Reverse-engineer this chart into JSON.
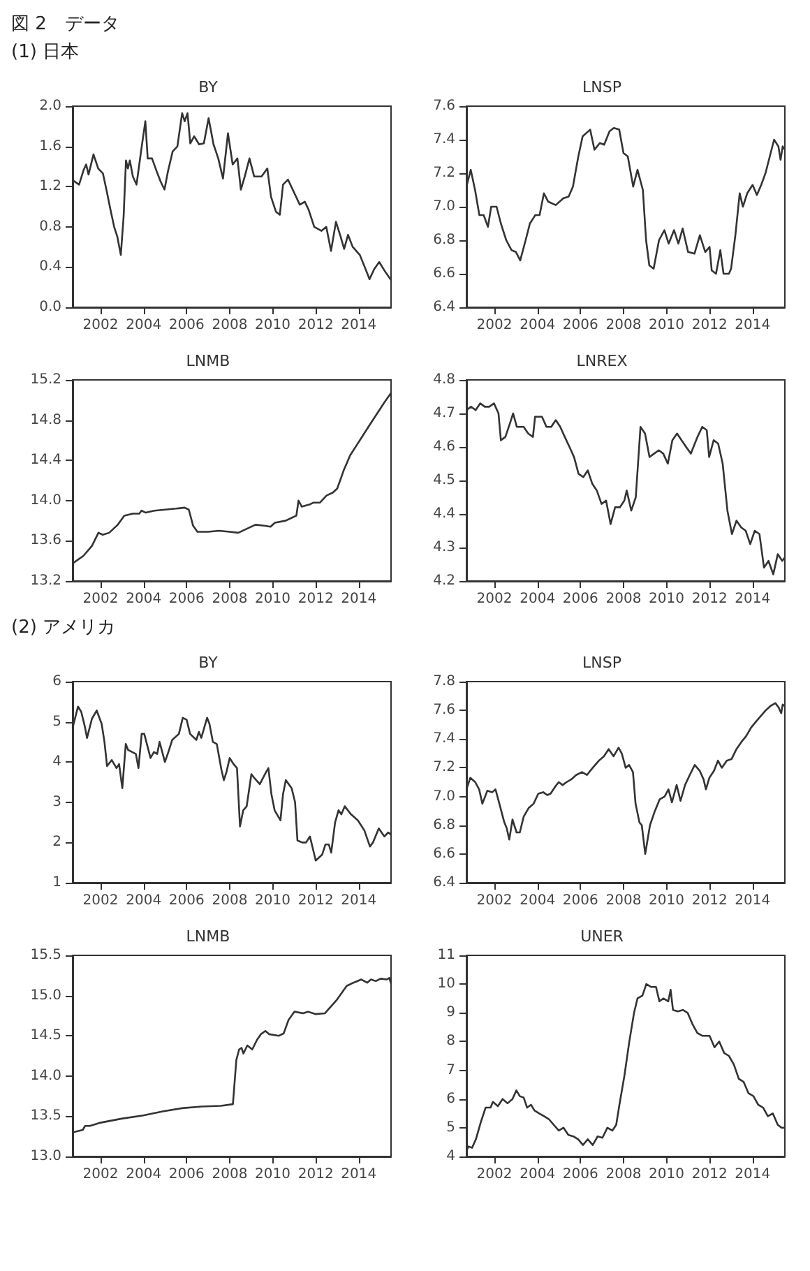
{
  "chart_data": [
    {
      "type": "line",
      "title": "BY",
      "annotations": [
        "図 2　データ",
        "(1) 日本"
      ],
      "xlim": [
        2000.7,
        2015.5
      ],
      "xticks": [
        2002,
        2004,
        2006,
        2008,
        2010,
        2012,
        2014
      ],
      "ylim": [
        0,
        2
      ],
      "yticks": [
        {
          "value": 0,
          "label": "0.0"
        },
        {
          "value": 0.4,
          "label": "0.4"
        },
        {
          "value": 0.8,
          "label": "0.8"
        },
        {
          "value": 1.2,
          "label": "1.2"
        },
        {
          "value": 1.6,
          "label": "1.6"
        },
        {
          "value": 2,
          "label": "2.0"
        }
      ],
      "x": [
        2000.73,
        2001.0,
        2001.22,
        2001.33,
        2001.44,
        2001.67,
        2001.89,
        2002.11,
        2002.29,
        2002.45,
        2002.63,
        2002.78,
        2002.94,
        2003.07,
        2003.18,
        2003.27,
        2003.36,
        2003.5,
        2003.67,
        2003.9,
        2004.08,
        2004.19,
        2004.39,
        2004.61,
        2004.79,
        2004.97,
        2005.13,
        2005.35,
        2005.57,
        2005.79,
        2005.91,
        2006.04,
        2006.17,
        2006.35,
        2006.58,
        2006.8,
        2007.02,
        2007.25,
        2007.47,
        2007.69,
        2007.92,
        2008.14,
        2008.36,
        2008.52,
        2008.7,
        2008.92,
        2009.14,
        2009.48,
        2009.75,
        2009.92,
        2010.15,
        2010.33,
        2010.48,
        2010.71,
        2011.04,
        2011.26,
        2011.49,
        2011.67,
        2011.93,
        2012.27,
        2012.49,
        2012.71,
        2012.94,
        2013.16,
        2013.32,
        2013.5,
        2013.72,
        2014.05,
        2014.28,
        2014.5,
        2014.72,
        2014.95,
        2015.24,
        2015.5
      ],
      "series": [
        {
          "color": "#333333",
          "values": [
            1.26,
            1.22,
            1.37,
            1.42,
            1.32,
            1.52,
            1.38,
            1.33,
            1.15,
            0.98,
            0.8,
            0.7,
            0.52,
            0.9,
            1.46,
            1.38,
            1.46,
            1.3,
            1.22,
            1.58,
            1.85,
            1.48,
            1.48,
            1.35,
            1.25,
            1.17,
            1.35,
            1.55,
            1.6,
            1.93,
            1.85,
            1.93,
            1.63,
            1.7,
            1.62,
            1.63,
            1.88,
            1.62,
            1.48,
            1.28,
            1.73,
            1.42,
            1.48,
            1.17,
            1.3,
            1.48,
            1.3,
            1.3,
            1.38,
            1.1,
            0.95,
            0.92,
            1.22,
            1.27,
            1.12,
            1.02,
            1.05,
            0.97,
            0.8,
            0.76,
            0.8,
            0.56,
            0.85,
            0.7,
            0.58,
            0.72,
            0.6,
            0.52,
            0.4,
            0.28,
            0.38,
            0.45,
            0.35,
            0.27
          ]
        }
      ]
    },
    {
      "type": "line",
      "title": "LNSP",
      "xlim": [
        2000.7,
        2015.5
      ],
      "xticks": [
        2002,
        2004,
        2006,
        2008,
        2010,
        2012,
        2014
      ],
      "ylim": [
        6.4,
        7.6
      ],
      "yticks": [
        6.4,
        6.6,
        6.8,
        {
          "value": 7,
          "label": "7.0"
        },
        7.2,
        7.4,
        7.6
      ],
      "x": [
        2000.7,
        2000.9,
        2001.1,
        2001.3,
        2001.5,
        2001.7,
        2001.85,
        2002.1,
        2002.3,
        2002.55,
        2002.8,
        2003.0,
        2003.2,
        2003.45,
        2003.65,
        2003.9,
        2004.1,
        2004.3,
        2004.5,
        2004.85,
        2005.2,
        2005.45,
        2005.65,
        2005.9,
        2006.1,
        2006.45,
        2006.65,
        2006.9,
        2007.1,
        2007.35,
        2007.55,
        2007.8,
        2008.0,
        2008.2,
        2008.45,
        2008.65,
        2008.9,
        2009.05,
        2009.2,
        2009.4,
        2009.65,
        2009.9,
        2010.1,
        2010.35,
        2010.55,
        2010.75,
        2011.0,
        2011.3,
        2011.55,
        2011.8,
        2012.0,
        2012.1,
        2012.3,
        2012.5,
        2012.65,
        2012.9,
        2013.0,
        2013.2,
        2013.4,
        2013.55,
        2013.75,
        2014.0,
        2014.2,
        2014.4,
        2014.6,
        2014.8,
        2015.0,
        2015.2,
        2015.3,
        2015.4,
        2015.5
      ],
      "series": [
        {
          "color": "#333333",
          "values": [
            7.12,
            7.22,
            7.1,
            6.95,
            6.95,
            6.88,
            7.0,
            7.0,
            6.9,
            6.8,
            6.74,
            6.73,
            6.68,
            6.8,
            6.9,
            6.95,
            6.95,
            7.08,
            7.03,
            7.01,
            7.05,
            7.06,
            7.12,
            7.3,
            7.42,
            7.46,
            7.34,
            7.38,
            7.37,
            7.45,
            7.47,
            7.46,
            7.32,
            7.3,
            7.12,
            7.22,
            7.1,
            6.8,
            6.65,
            6.63,
            6.8,
            6.86,
            6.78,
            6.86,
            6.78,
            6.87,
            6.73,
            6.72,
            6.83,
            6.73,
            6.76,
            6.62,
            6.6,
            6.74,
            6.6,
            6.6,
            6.63,
            6.83,
            7.08,
            7.0,
            7.08,
            7.13,
            7.07,
            7.13,
            7.2,
            7.3,
            7.4,
            7.36,
            7.28,
            7.36,
            7.34
          ]
        }
      ]
    },
    {
      "type": "line",
      "title": "LNMB",
      "xlim": [
        2000.7,
        2015.5
      ],
      "xticks": [
        2002,
        2004,
        2006,
        2008,
        2010,
        2012,
        2014
      ],
      "ylim": [
        13.2,
        15.2
      ],
      "yticks": [
        13.2,
        13.6,
        {
          "value": 14,
          "label": "14.0"
        },
        14.4,
        14.8,
        15.2
      ],
      "x": [
        2000.73,
        2001.2,
        2001.6,
        2001.9,
        2002.1,
        2002.4,
        2002.8,
        2003.1,
        2003.5,
        2003.8,
        2003.9,
        2004.1,
        2004.5,
        2005.0,
        2005.5,
        2005.9,
        2006.1,
        2006.3,
        2006.5,
        2007.0,
        2007.5,
        2008.0,
        2008.4,
        2008.8,
        2009.2,
        2009.6,
        2009.9,
        2010.1,
        2010.6,
        2010.9,
        2011.1,
        2011.2,
        2011.35,
        2011.7,
        2011.9,
        2012.2,
        2012.5,
        2012.8,
        2013.0,
        2013.3,
        2013.6,
        2013.9,
        2014.2,
        2014.5,
        2014.9,
        2015.2,
        2015.5
      ],
      "series": [
        {
          "color": "#333333",
          "values": [
            13.38,
            13.45,
            13.55,
            13.68,
            13.66,
            13.68,
            13.76,
            13.85,
            13.87,
            13.87,
            13.9,
            13.88,
            13.9,
            13.91,
            13.92,
            13.93,
            13.91,
            13.75,
            13.69,
            13.69,
            13.7,
            13.69,
            13.68,
            13.72,
            13.76,
            13.75,
            13.74,
            13.78,
            13.8,
            13.83,
            13.85,
            14.0,
            13.94,
            13.96,
            13.98,
            13.98,
            14.05,
            14.08,
            14.12,
            14.3,
            14.45,
            14.55,
            14.65,
            14.75,
            14.88,
            14.98,
            15.07
          ]
        }
      ]
    },
    {
      "type": "line",
      "title": "LNREX",
      "xlim": [
        2000.7,
        2015.5
      ],
      "xticks": [
        2002,
        2004,
        2006,
        2008,
        2010,
        2012,
        2014
      ],
      "ylim": [
        4.2,
        4.8
      ],
      "yticks": [
        4.2,
        4.3,
        4.4,
        4.5,
        4.6,
        4.7,
        4.8
      ],
      "x": [
        2000.7,
        2000.91,
        2001.13,
        2001.34,
        2001.55,
        2001.76,
        2001.98,
        2002.19,
        2002.3,
        2002.51,
        2002.72,
        2002.87,
        2003.04,
        2003.36,
        2003.57,
        2003.79,
        2003.89,
        2004.21,
        2004.42,
        2004.64,
        2004.85,
        2005.06,
        2005.27,
        2005.49,
        2005.7,
        2005.91,
        2006.13,
        2006.34,
        2006.55,
        2006.76,
        2006.98,
        2007.19,
        2007.4,
        2007.61,
        2007.83,
        2008.04,
        2008.15,
        2008.36,
        2008.57,
        2008.79,
        2009.0,
        2009.21,
        2009.42,
        2009.64,
        2009.85,
        2010.06,
        2010.27,
        2010.49,
        2010.7,
        2010.91,
        2011.13,
        2011.44,
        2011.66,
        2011.87,
        2011.98,
        2012.19,
        2012.4,
        2012.61,
        2012.83,
        2013.04,
        2013.25,
        2013.47,
        2013.68,
        2013.89,
        2014.1,
        2014.32,
        2014.53,
        2014.74,
        2014.96,
        2015.17,
        2015.38,
        2015.49
      ],
      "series": [
        {
          "color": "#333333",
          "values": [
            4.71,
            4.72,
            4.71,
            4.73,
            4.72,
            4.72,
            4.73,
            4.7,
            4.62,
            4.63,
            4.67,
            4.7,
            4.66,
            4.66,
            4.64,
            4.63,
            4.69,
            4.69,
            4.66,
            4.66,
            4.68,
            4.66,
            4.63,
            4.6,
            4.57,
            4.52,
            4.51,
            4.53,
            4.49,
            4.47,
            4.43,
            4.44,
            4.37,
            4.42,
            4.42,
            4.44,
            4.47,
            4.41,
            4.45,
            4.66,
            4.64,
            4.57,
            4.58,
            4.59,
            4.58,
            4.55,
            4.62,
            4.64,
            4.62,
            4.6,
            4.58,
            4.63,
            4.66,
            4.65,
            4.57,
            4.62,
            4.61,
            4.55,
            4.41,
            4.34,
            4.38,
            4.36,
            4.35,
            4.31,
            4.35,
            4.34,
            4.24,
            4.26,
            4.22,
            4.28,
            4.26,
            4.27
          ]
        }
      ]
    },
    {
      "type": "line",
      "title": "BY",
      "annotations": [
        "(2) アメリカ"
      ],
      "xlim": [
        2000.7,
        2015.5
      ],
      "xticks": [
        2002,
        2004,
        2006,
        2008,
        2010,
        2012,
        2014
      ],
      "ylim": [
        1,
        6
      ],
      "yticks": [
        1,
        2,
        3,
        4,
        5,
        6
      ],
      "x": [
        2000.7,
        2000.95,
        2001.1,
        2001.26,
        2001.37,
        2001.6,
        2001.82,
        2002.05,
        2002.18,
        2002.3,
        2002.52,
        2002.74,
        2002.86,
        2003.01,
        2003.17,
        2003.28,
        2003.64,
        2003.76,
        2003.91,
        2004.03,
        2004.32,
        2004.48,
        2004.63,
        2004.74,
        2004.99,
        2005.15,
        2005.33,
        2005.64,
        2005.82,
        2006.0,
        2006.16,
        2006.45,
        2006.57,
        2006.68,
        2006.95,
        2007.06,
        2007.22,
        2007.4,
        2007.62,
        2007.73,
        2007.85,
        2008.0,
        2008.18,
        2008.34,
        2008.48,
        2008.63,
        2008.79,
        2009.01,
        2009.15,
        2009.4,
        2009.69,
        2009.8,
        2009.94,
        2010.09,
        2010.36,
        2010.48,
        2010.61,
        2010.88,
        2011.04,
        2011.15,
        2011.37,
        2011.55,
        2011.73,
        2012.0,
        2012.3,
        2012.45,
        2012.61,
        2012.72,
        2012.9,
        2013.06,
        2013.19,
        2013.35,
        2013.64,
        2013.96,
        2014.26,
        2014.52,
        2014.66,
        2014.93,
        2015.19,
        2015.37,
        2015.49
      ],
      "series": [
        {
          "color": "#333333",
          "values": [
            4.85,
            5.38,
            5.25,
            4.9,
            4.6,
            5.08,
            5.28,
            4.95,
            4.5,
            3.9,
            4.05,
            3.85,
            3.95,
            3.35,
            4.45,
            4.3,
            4.2,
            3.85,
            4.7,
            4.7,
            4.1,
            4.25,
            4.2,
            4.5,
            4.0,
            4.25,
            4.55,
            4.7,
            5.1,
            5.05,
            4.7,
            4.55,
            4.75,
            4.6,
            5.1,
            4.95,
            4.5,
            4.45,
            3.8,
            3.55,
            3.75,
            4.1,
            3.95,
            3.85,
            2.4,
            2.8,
            2.9,
            3.7,
            3.6,
            3.45,
            3.75,
            3.85,
            3.2,
            2.8,
            2.55,
            3.2,
            3.55,
            3.35,
            3.0,
            2.05,
            2.0,
            2.0,
            2.15,
            1.55,
            1.7,
            1.95,
            1.95,
            1.75,
            2.5,
            2.8,
            2.7,
            2.9,
            2.7,
            2.55,
            2.3,
            1.9,
            2.0,
            2.35,
            2.15,
            2.25,
            2.2
          ]
        }
      ]
    },
    {
      "type": "line",
      "title": "LNSP",
      "xlim": [
        2000.7,
        2015.5
      ],
      "xticks": [
        2002,
        2004,
        2006,
        2008,
        2010,
        2012,
        2014
      ],
      "ylim": [
        6.4,
        7.8
      ],
      "yticks": [
        6.4,
        6.6,
        6.8,
        {
          "value": 7,
          "label": "7.0"
        },
        7.2,
        7.4,
        7.6,
        7.8
      ],
      "x": [
        2000.7,
        2000.88,
        2001.11,
        2001.29,
        2001.44,
        2001.67,
        2001.9,
        2002.05,
        2002.23,
        2002.46,
        2002.57,
        2002.69,
        2002.84,
        2003.03,
        2003.18,
        2003.36,
        2003.59,
        2003.82,
        2004.04,
        2004.27,
        2004.45,
        2004.61,
        2004.83,
        2004.99,
        2005.17,
        2005.35,
        2005.58,
        2005.8,
        2006.07,
        2006.3,
        2006.57,
        2006.86,
        2007.09,
        2007.31,
        2007.54,
        2007.77,
        2007.92,
        2008.1,
        2008.26,
        2008.44,
        2008.56,
        2008.74,
        2008.85,
        2009.01,
        2009.23,
        2009.46,
        2009.68,
        2009.91,
        2010.09,
        2010.25,
        2010.47,
        2010.65,
        2010.86,
        2011.08,
        2011.31,
        2011.54,
        2011.72,
        2011.83,
        2011.99,
        2012.21,
        2012.39,
        2012.57,
        2012.8,
        2013.02,
        2013.25,
        2013.48,
        2013.7,
        2013.93,
        2014.15,
        2014.38,
        2014.61,
        2014.83,
        2015.06,
        2015.21,
        2015.33,
        2015.4,
        2015.5
      ],
      "series": [
        {
          "color": "#333333",
          "values": [
            7.05,
            7.13,
            7.1,
            7.05,
            6.95,
            7.04,
            7.03,
            7.05,
            6.95,
            6.82,
            6.78,
            6.7,
            6.84,
            6.75,
            6.75,
            6.86,
            6.92,
            6.95,
            7.02,
            7.03,
            7.01,
            7.02,
            7.07,
            7.1,
            7.08,
            7.1,
            7.12,
            7.15,
            7.17,
            7.15,
            7.2,
            7.25,
            7.28,
            7.33,
            7.28,
            7.34,
            7.3,
            7.2,
            7.22,
            7.17,
            6.95,
            6.82,
            6.8,
            6.6,
            6.8,
            6.9,
            6.98,
            7.0,
            7.05,
            6.96,
            7.08,
            6.97,
            7.08,
            7.15,
            7.22,
            7.18,
            7.12,
            7.05,
            7.13,
            7.18,
            7.25,
            7.2,
            7.25,
            7.26,
            7.33,
            7.38,
            7.42,
            7.48,
            7.52,
            7.56,
            7.6,
            7.63,
            7.65,
            7.62,
            7.58,
            7.64,
            7.63
          ]
        }
      ]
    },
    {
      "type": "line",
      "title": "LNMB",
      "xlim": [
        2000.7,
        2015.5
      ],
      "xticks": [
        2002,
        2004,
        2006,
        2008,
        2010,
        2012,
        2014
      ],
      "ylim": [
        13,
        15.5
      ],
      "yticks": [
        {
          "value": 13,
          "label": "13.0"
        },
        13.5,
        {
          "value": 14,
          "label": "14.0"
        },
        14.5,
        {
          "value": 15,
          "label": "15.0"
        },
        15.5
      ],
      "x": [
        2000.7,
        2001.17,
        2001.28,
        2001.5,
        2002.0,
        2002.97,
        2003.98,
        2004.88,
        2005.78,
        2006.68,
        2007.59,
        2008.15,
        2008.31,
        2008.44,
        2008.55,
        2008.64,
        2008.82,
        2009.05,
        2009.27,
        2009.45,
        2009.66,
        2009.84,
        2010.29,
        2010.51,
        2010.74,
        2011.01,
        2011.41,
        2011.64,
        2011.98,
        2012.43,
        2012.99,
        2013.44,
        2013.67,
        2014.12,
        2014.39,
        2014.57,
        2014.79,
        2015.02,
        2015.29,
        2015.42,
        2015.5
      ],
      "series": [
        {
          "color": "#333333",
          "values": [
            13.3,
            13.33,
            13.38,
            13.38,
            13.42,
            13.47,
            13.51,
            13.56,
            13.6,
            13.62,
            13.63,
            13.65,
            14.2,
            14.33,
            14.35,
            14.28,
            14.38,
            14.33,
            14.45,
            14.52,
            14.56,
            14.52,
            14.5,
            14.53,
            14.7,
            14.8,
            14.78,
            14.8,
            14.77,
            14.78,
            14.95,
            15.12,
            15.15,
            15.2,
            15.16,
            15.2,
            15.18,
            15.21,
            15.2,
            15.22,
            15.15
          ]
        }
      ]
    },
    {
      "type": "line",
      "title": "UNER",
      "xlim": [
        2000.7,
        2015.5
      ],
      "xticks": [
        2002,
        2004,
        2006,
        2008,
        2010,
        2012,
        2014
      ],
      "ylim": [
        4,
        11
      ],
      "yticks": [
        4,
        5,
        6,
        7,
        8,
        9,
        10,
        11
      ],
      "x": [
        2000.7,
        2000.8,
        2000.96,
        2001.14,
        2001.37,
        2001.59,
        2001.82,
        2001.93,
        2002.16,
        2002.38,
        2002.61,
        2002.84,
        2003.02,
        2003.18,
        2003.36,
        2003.52,
        2003.7,
        2003.86,
        2004.08,
        2004.31,
        2004.53,
        2004.76,
        2004.99,
        2005.21,
        2005.44,
        2005.67,
        2005.89,
        2006.12,
        2006.34,
        2006.57,
        2006.8,
        2007.02,
        2007.25,
        2007.48,
        2007.66,
        2007.81,
        2008.04,
        2008.27,
        2008.49,
        2008.65,
        2008.88,
        2009.06,
        2009.29,
        2009.51,
        2009.67,
        2009.85,
        2010.08,
        2010.19,
        2010.3,
        2010.53,
        2010.76,
        2010.98,
        2011.21,
        2011.43,
        2011.66,
        2012.0,
        2012.23,
        2012.45,
        2012.68,
        2012.9,
        2013.13,
        2013.36,
        2013.58,
        2013.81,
        2014.04,
        2014.26,
        2014.49,
        2014.71,
        2014.94,
        2015.17,
        2015.35,
        2015.5
      ],
      "series": [
        {
          "color": "#333333",
          "values": [
            4.2,
            4.35,
            4.3,
            4.6,
            5.2,
            5.7,
            5.7,
            5.9,
            5.75,
            6.0,
            5.85,
            6.0,
            6.3,
            6.1,
            6.05,
            5.7,
            5.8,
            5.6,
            5.5,
            5.4,
            5.3,
            5.1,
            4.9,
            5.0,
            4.75,
            4.7,
            4.6,
            4.4,
            4.6,
            4.4,
            4.7,
            4.65,
            5.0,
            4.9,
            5.1,
            5.8,
            6.8,
            8.0,
            9.0,
            9.5,
            9.6,
            10.0,
            9.9,
            9.9,
            9.4,
            9.5,
            9.4,
            9.8,
            9.1,
            9.05,
            9.1,
            9.0,
            8.6,
            8.3,
            8.2,
            8.2,
            7.8,
            8.0,
            7.6,
            7.5,
            7.2,
            6.7,
            6.6,
            6.2,
            6.1,
            5.8,
            5.7,
            5.4,
            5.5,
            5.1,
            5.0,
            5.0
          ]
        }
      ]
    }
  ]
}
